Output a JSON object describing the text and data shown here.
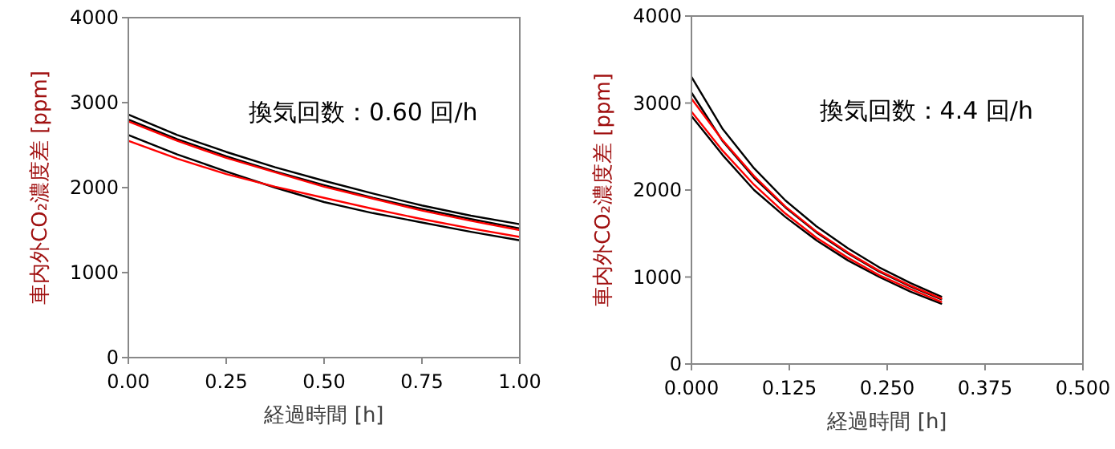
{
  "chart_data": [
    {
      "type": "line",
      "xlabel": "経過時間 [h]",
      "ylabel": "車内外CO₂濃度差 [ppm]",
      "annotations": [
        "換気回数：0.60  回/h"
      ],
      "x": [
        0,
        0.125,
        0.25,
        0.375,
        0.5,
        0.625,
        0.75,
        0.875,
        1.0
      ],
      "series": [
        {
          "color": "#000000",
          "values": [
            2860,
            2620,
            2420,
            2240,
            2080,
            1930,
            1790,
            1670,
            1570
          ]
        },
        {
          "color": "#000000",
          "values": [
            2800,
            2570,
            2370,
            2190,
            2030,
            1880,
            1750,
            1630,
            1520
          ]
        },
        {
          "color": "#000000",
          "values": [
            2620,
            2390,
            2190,
            2000,
            1830,
            1700,
            1590,
            1480,
            1380
          ]
        },
        {
          "color": "#ff0000",
          "values": [
            2780,
            2550,
            2350,
            2180,
            2010,
            1870,
            1730,
            1610,
            1500
          ]
        },
        {
          "color": "#ff0000",
          "values": [
            2550,
            2340,
            2160,
            2010,
            1880,
            1750,
            1630,
            1520,
            1420
          ]
        }
      ],
      "xlim": [
        0,
        1.0
      ],
      "ylim": [
        0,
        4000
      ],
      "xticks": [
        {
          "value": 0,
          "label": "0.00"
        },
        {
          "value": 0.25,
          "label": "0.25"
        },
        {
          "value": 0.5,
          "label": "0.50"
        },
        {
          "value": 0.75,
          "label": "0.75"
        },
        {
          "value": 1.0,
          "label": "1.00"
        }
      ],
      "yticks": [
        0,
        1000,
        2000,
        3000,
        4000
      ]
    },
    {
      "type": "line",
      "xlabel": "経過時間 [h]",
      "ylabel": "車内外CO₂濃度差 [ppm]",
      "annotations": [
        "換気回数：4.4  回/h"
      ],
      "x": [
        0,
        0.04,
        0.08,
        0.12,
        0.16,
        0.2,
        0.24,
        0.28,
        0.32
      ],
      "series": [
        {
          "color": "#000000",
          "values": [
            3300,
            2700,
            2250,
            1880,
            1580,
            1330,
            1110,
            930,
            770
          ]
        },
        {
          "color": "#000000",
          "values": [
            3120,
            2560,
            2140,
            1800,
            1510,
            1270,
            1060,
            890,
            740
          ]
        },
        {
          "color": "#000000",
          "values": [
            2850,
            2400,
            2000,
            1690,
            1420,
            1190,
            1000,
            830,
            690
          ]
        },
        {
          "color": "#ff0000",
          "values": [
            3050,
            2570,
            2160,
            1810,
            1520,
            1280,
            1070,
            900,
            750
          ]
        },
        {
          "color": "#ff0000",
          "values": [
            2900,
            2450,
            2060,
            1730,
            1450,
            1220,
            1020,
            860,
            710
          ]
        }
      ],
      "xlim": [
        0,
        0.5
      ],
      "ylim": [
        0,
        4000
      ],
      "xticks": [
        {
          "value": 0,
          "label": "0.000"
        },
        {
          "value": 0.125,
          "label": "0.125"
        },
        {
          "value": 0.25,
          "label": "0.250"
        },
        {
          "value": 0.375,
          "label": "0.375"
        },
        {
          "value": 0.5,
          "label": "0.500"
        }
      ],
      "yticks": [
        0,
        1000,
        2000,
        3000,
        4000
      ]
    }
  ]
}
